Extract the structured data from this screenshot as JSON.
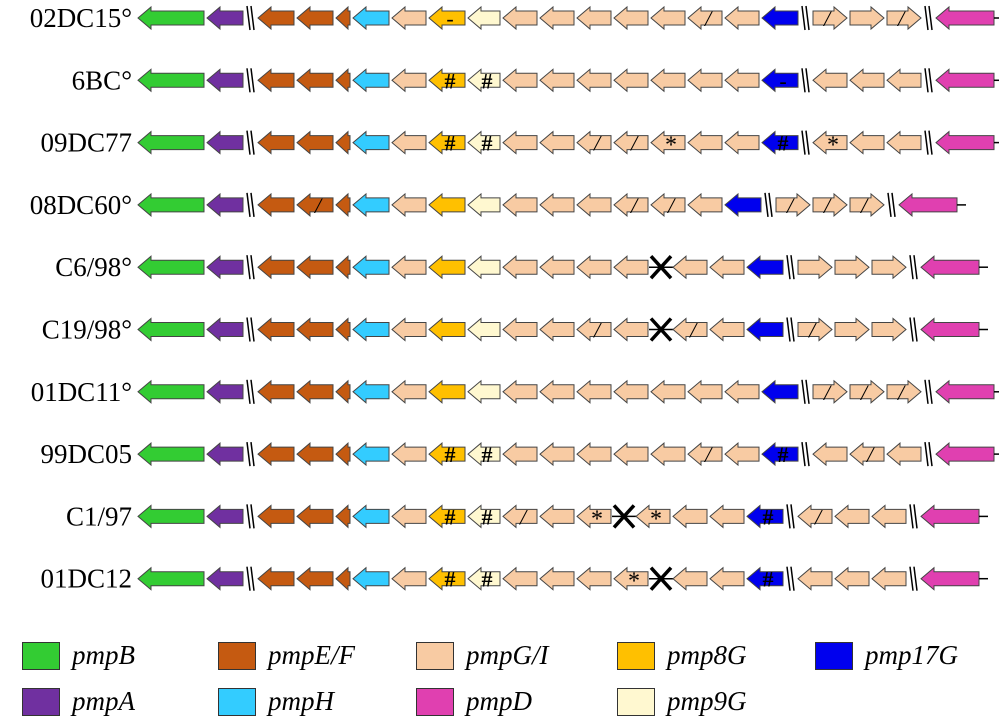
{
  "colors": {
    "pmpB": "#33cc33",
    "pmpA": "#7030a0",
    "pmpEF": "#c55a11",
    "pmpH": "#33ccff",
    "pmpGI": "#f8cba3",
    "pmp8G": "#ffc000",
    "pmp9G": "#fff8d0",
    "pmp17G": "#0000ee",
    "pmpD": "#e040b0"
  },
  "rows": [
    {
      "label": "02DC15°",
      "genes": [
        "pmpB",
        "pmpA",
        "//",
        "pmpEF",
        "pmpEF",
        "pmpEF:small",
        "pmpH",
        "pmpGI",
        "pmp8G:-",
        "pmp9G",
        "pmpGI",
        "pmpGI",
        "pmpGI",
        "pmpGI",
        "pmpGI",
        "pmpGI:/",
        "pmpGI",
        "pmp17G",
        "//",
        "pmpGI:/",
        "pmpGI",
        "pmpGI:/",
        "//",
        "pmpD"
      ]
    },
    {
      "label": "6BC°",
      "genes": [
        "pmpB",
        "pmpA",
        "//",
        "pmpEF",
        "pmpEF",
        "pmpEF:small",
        "pmpH",
        "pmpGI",
        "pmp8G:#",
        "pmp9G:#",
        "pmpGI",
        "pmpGI",
        "pmpGI",
        "pmpGI",
        "pmpGI",
        "pmpGI",
        "pmpGI",
        "pmp17G:-",
        "//",
        "pmpGI",
        "pmpGI",
        "pmpGI",
        "//",
        "pmpD"
      ]
    },
    {
      "label": "09DC77",
      "genes": [
        "pmpB",
        "pmpA",
        "//",
        "pmpEF",
        "pmpEF",
        "pmpEF:small",
        "pmpH",
        "pmpGI",
        "pmp8G:#",
        "pmp9G:#",
        "pmpGI",
        "pmpGI",
        "pmpGI:/",
        "pmpGI:/",
        "pmpGI:*",
        "pmpGI",
        "pmpGI",
        "pmp17G:#",
        "//",
        "pmpGI:*",
        "pmpGI",
        "pmpGI",
        "//",
        "pmpD"
      ]
    },
    {
      "label": "08DC60°",
      "genes": [
        "pmpB",
        "pmpA",
        "//",
        "pmpEF",
        "pmpEF:/",
        "pmpEF:small",
        "pmpH",
        "pmpGI",
        "pmp8G",
        "pmp9G",
        "pmpGI",
        "pmpGI",
        "pmpGI",
        "pmpGI:/",
        "pmpGI:/",
        "pmpGI",
        "pmp17G",
        "//",
        "pmpGI:/",
        "pmpGI:/",
        "pmpGI:/",
        "//",
        "pmpD"
      ]
    },
    {
      "label": "C6/98°",
      "genes": [
        "pmpB",
        "pmpA",
        "//",
        "pmpEF",
        "pmpEF",
        "pmpEF:small",
        "pmpH",
        "pmpGI",
        "pmp8G",
        "pmp9G",
        "pmpGI",
        "pmpGI",
        "pmpGI",
        "pmpGI",
        "X",
        "pmpGI",
        "pmpGI",
        "pmp17G",
        "//",
        "pmpGI",
        "pmpGI",
        "pmpGI",
        "//",
        "pmpD"
      ]
    },
    {
      "label": "C19/98°",
      "genes": [
        "pmpB",
        "pmpA",
        "//",
        "pmpEF",
        "pmpEF",
        "pmpEF:small",
        "pmpH",
        "pmpGI",
        "pmp8G",
        "pmp9G",
        "pmpGI",
        "pmpGI",
        "pmpGI:/",
        "pmpGI",
        "X",
        "pmpGI:/",
        "pmpGI",
        "pmp17G",
        "//",
        "pmpGI:/",
        "pmpGI",
        "pmpGI",
        "//",
        "pmpD"
      ]
    },
    {
      "label": "01DC11°",
      "genes": [
        "pmpB",
        "pmpA",
        "//",
        "pmpEF",
        "pmpEF",
        "pmpEF:small",
        "pmpH",
        "pmpGI",
        "pmp8G",
        "pmp9G",
        "pmpGI",
        "pmpGI",
        "pmpGI",
        "pmpGI",
        "pmpGI",
        "pmpGI",
        "pmpGI",
        "pmp17G",
        "//",
        "pmpGI:/",
        "pmpGI:/",
        "pmpGI:/",
        "//",
        "pmpD"
      ]
    },
    {
      "label": "99DC05",
      "genes": [
        "pmpB",
        "pmpA",
        "//",
        "pmpEF",
        "pmpEF",
        "pmpEF:small",
        "pmpH",
        "pmpGI",
        "pmp8G:#",
        "pmp9G:#",
        "pmpGI",
        "pmpGI",
        "pmpGI",
        "pmpGI",
        "pmpGI",
        "pmpGI:/",
        "pmpGI",
        "pmp17G:#",
        "//",
        "pmpGI",
        "pmpGI:/",
        "pmpGI",
        "//",
        "pmpD"
      ]
    },
    {
      "label": "C1/97",
      "genes": [
        "pmpB",
        "pmpA",
        "//",
        "pmpEF",
        "pmpEF",
        "pmpEF:small",
        "pmpH",
        "pmpGI",
        "pmp8G:#",
        "pmp9G:#",
        "pmpGI:/",
        "pmpGI",
        "pmpGI:*",
        "X",
        "pmpGI:*",
        "pmpGI",
        "pmpGI",
        "pmp17G:#",
        "//",
        "pmpGI:/",
        "pmpGI",
        "pmpGI",
        "//",
        "pmpD"
      ]
    },
    {
      "label": "01DC12",
      "genes": [
        "pmpB",
        "pmpA",
        "//",
        "pmpEF",
        "pmpEF",
        "pmpEF:small",
        "pmpH",
        "pmpGI",
        "pmp8G:#",
        "pmp9G:#",
        "pmpGI",
        "pmpGI",
        "pmpGI",
        "pmpGI:*",
        "X",
        "pmpGI",
        "pmpGI",
        "pmp17G:#",
        "//",
        "pmpGI",
        "pmpGI",
        "pmpGI",
        "//",
        "pmpD"
      ]
    }
  ],
  "legend": [
    {
      "key": "pmpB",
      "label": "pmpB"
    },
    {
      "key": "pmpEF",
      "label": "pmpE/F"
    },
    {
      "key": "pmpGI",
      "label": "pmpG/I"
    },
    {
      "key": "pmp8G",
      "label": "pmp8G"
    },
    {
      "key": "pmp17G",
      "label": "pmp17G"
    },
    {
      "key": "pmpA",
      "label": "pmpA"
    },
    {
      "key": "pmpH",
      "label": "pmpH"
    },
    {
      "key": "pmpD",
      "label": "pmpD"
    },
    {
      "key": "pmp9G",
      "label": "pmp9G"
    }
  ]
}
